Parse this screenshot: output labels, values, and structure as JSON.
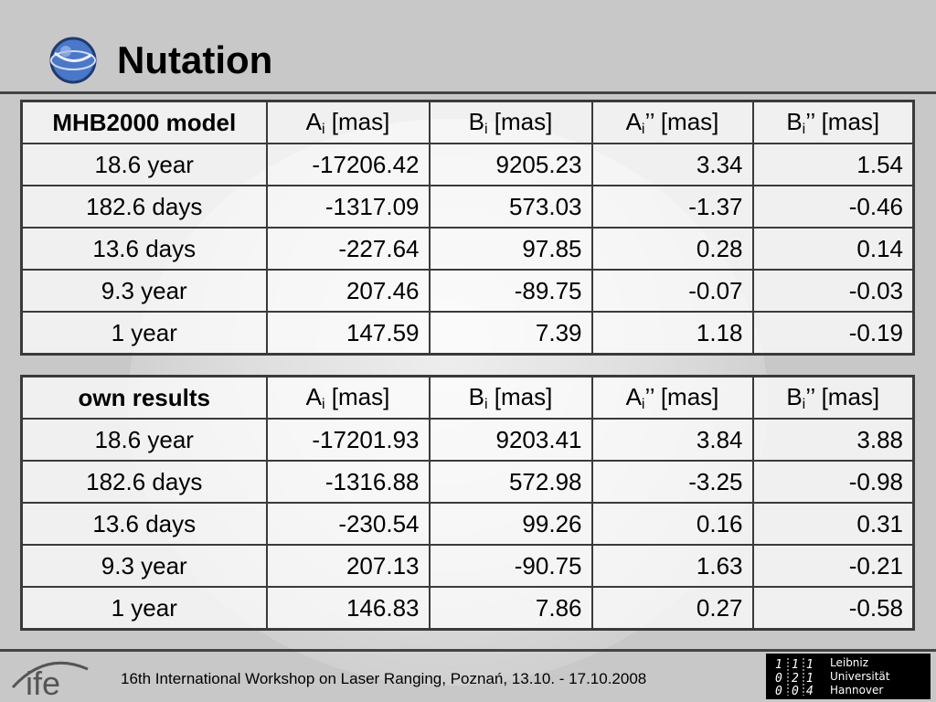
{
  "slide": {
    "title": "Nutation"
  },
  "table_model": {
    "header": [
      "MHB2000 model",
      "A",
      "B",
      "A",
      "B"
    ],
    "header_sub": [
      "",
      "i",
      "i",
      "i",
      "i"
    ],
    "header_suffix": [
      "",
      " [mas]",
      " [mas]",
      "’’ [mas]",
      "’’ [mas]"
    ],
    "rows": [
      [
        "18.6 year",
        "-17206.42",
        "9205.23",
        "3.34",
        "1.54"
      ],
      [
        "182.6 days",
        "-1317.09",
        "573.03",
        "-1.37",
        "-0.46"
      ],
      [
        "13.6 days",
        "-227.64",
        "97.85",
        "0.28",
        "0.14"
      ],
      [
        "9.3 year",
        "207.46",
        "-89.75",
        "-0.07",
        "-0.03"
      ],
      [
        "1 year",
        "147.59",
        "7.39",
        "1.18",
        "-0.19"
      ]
    ]
  },
  "table_own": {
    "header": [
      "own results",
      "A",
      "B",
      "A",
      "B"
    ],
    "header_sub": [
      "",
      "i",
      "i",
      "i",
      "i"
    ],
    "header_suffix": [
      "",
      " [mas]",
      " [mas]",
      "’’ [mas]",
      "’’ [mas]"
    ],
    "rows": [
      [
        "18.6 year",
        "-17201.93",
        "9203.41",
        "3.84",
        "3.88"
      ],
      [
        "182.6 days",
        "-1316.88",
        "572.98",
        "-3.25",
        "-0.98"
      ],
      [
        "13.6 days",
        "-230.54",
        "99.26",
        "0.16",
        "0.31"
      ],
      [
        "9.3 year",
        "207.13",
        "-90.75",
        "1.63",
        "-0.21"
      ],
      [
        "1 year",
        "146.83",
        "7.86",
        "0.27",
        "-0.58"
      ]
    ]
  },
  "footer": {
    "text": "16th International Workshop on Laser Ranging, Poznań, 13.10. - 17.10.2008",
    "ife_logo": "ife",
    "luh_logo_lines": [
      "Leibniz",
      "Universität",
      "Hannover"
    ],
    "luh_mark_digits": [
      "1",
      "1",
      "1",
      "0",
      "2",
      "1",
      "0",
      "0",
      "4"
    ]
  },
  "icons": {
    "title_logo": "globe-logo-icon"
  }
}
